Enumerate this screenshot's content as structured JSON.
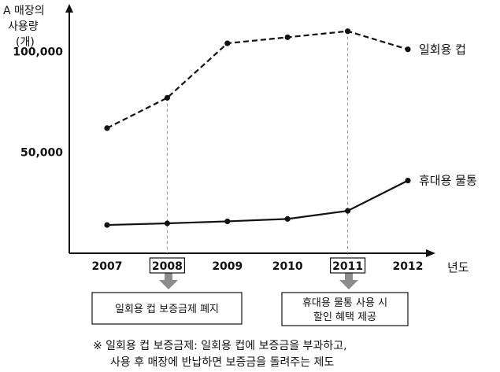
{
  "chart_data": {
    "type": "line",
    "title": "",
    "ylabel": [
      "A 매장의",
      "사용량",
      "(개)"
    ],
    "xlabel": "년도",
    "categories": [
      "2007",
      "2008",
      "2009",
      "2010",
      "2011",
      "2012"
    ],
    "highlighted_categories": [
      "2008",
      "2011"
    ],
    "ylim": [
      0,
      120000
    ],
    "yticks": [
      {
        "value": 100000,
        "label": "100,000"
      },
      {
        "value": 50000,
        "label": "50,000"
      }
    ],
    "grid": false,
    "series": [
      {
        "name": "일회용 컵",
        "style": "dashed",
        "values": [
          62000,
          77000,
          104000,
          107000,
          110000,
          101000
        ]
      },
      {
        "name": "휴대용 물통",
        "style": "solid",
        "values": [
          14000,
          14800,
          15800,
          17000,
          21000,
          36000
        ]
      }
    ],
    "annotations": [
      {
        "category": "2008",
        "lines": [
          "일회용 컵 보증금제 폐지"
        ]
      },
      {
        "category": "2011",
        "lines": [
          "휴대용 물통 사용 시",
          "할인 혜택 제공"
        ]
      }
    ]
  },
  "footnote": [
    "※ 일회용 컵 보증금제: 일회용 컵에 보증금을 부과하고,",
    "사용 후 매장에 반납하면 보증금을 돌려주는 제도"
  ],
  "colors": {
    "line": "#111111",
    "guide": "#999999",
    "arrow": "#8c8c8c"
  }
}
